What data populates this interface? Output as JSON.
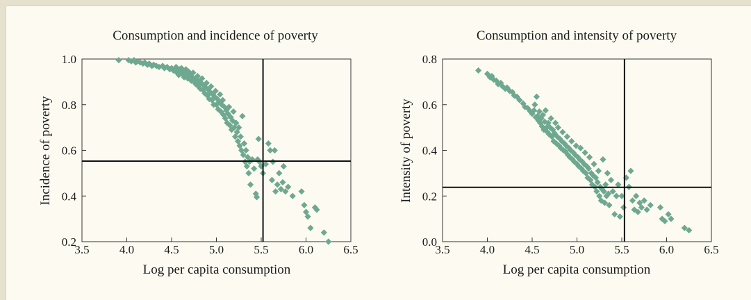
{
  "colors": {
    "marker": "#6fa890",
    "background": "#fdfbf1",
    "border": "#e6e0ce"
  },
  "chart_data": [
    {
      "type": "scatter",
      "title": "Consumption and incidence of poverty",
      "xlabel": "Log per capita consumption",
      "ylabel": "Incidence of poverty",
      "xlim": [
        3.5,
        6.5
      ],
      "ylim": [
        0.2,
        1.0
      ],
      "xticks": [
        3.5,
        4.0,
        4.5,
        5.0,
        5.5,
        6.0,
        6.5
      ],
      "xtick_labels": [
        "3.5",
        "4.0",
        "4.5",
        "5.0",
        "5.5",
        "6.0",
        "6.5"
      ],
      "yticks": [
        0.2,
        0.4,
        0.6,
        0.8,
        1.0
      ],
      "ytick_labels": [
        "0.2",
        "0.4",
        "0.6",
        "0.8",
        "1.0"
      ],
      "vline": 5.52,
      "hline": 0.553,
      "grid": false,
      "points": [
        [
          3.91,
          0.995
        ],
        [
          4.02,
          0.995
        ],
        [
          4.05,
          0.99
        ],
        [
          4.08,
          0.995
        ],
        [
          4.1,
          0.985
        ],
        [
          4.12,
          0.99
        ],
        [
          4.15,
          0.985
        ],
        [
          4.18,
          0.98
        ],
        [
          4.2,
          0.985
        ],
        [
          4.23,
          0.975
        ],
        [
          4.25,
          0.98
        ],
        [
          4.28,
          0.97
        ],
        [
          4.3,
          0.975
        ],
        [
          4.33,
          0.97
        ],
        [
          4.36,
          0.965
        ],
        [
          4.4,
          0.97
        ],
        [
          4.42,
          0.96
        ],
        [
          4.45,
          0.965
        ],
        [
          4.48,
          0.955
        ],
        [
          4.5,
          0.96
        ],
        [
          4.52,
          0.95
        ],
        [
          4.54,
          0.955
        ],
        [
          4.55,
          0.965
        ],
        [
          4.56,
          0.94
        ],
        [
          4.57,
          0.95
        ],
        [
          4.58,
          0.93
        ],
        [
          4.59,
          0.955
        ],
        [
          4.6,
          0.945
        ],
        [
          4.61,
          0.96
        ],
        [
          4.62,
          0.935
        ],
        [
          4.63,
          0.95
        ],
        [
          4.64,
          0.92
        ],
        [
          4.65,
          0.94
        ],
        [
          4.66,
          0.955
        ],
        [
          4.67,
          0.93
        ],
        [
          4.68,
          0.915
        ],
        [
          4.69,
          0.945
        ],
        [
          4.7,
          0.925
        ],
        [
          4.71,
          0.935
        ],
        [
          4.72,
          0.905
        ],
        [
          4.73,
          0.92
        ],
        [
          4.74,
          0.94
        ],
        [
          4.75,
          0.9
        ],
        [
          4.76,
          0.915
        ],
        [
          4.77,
          0.89
        ],
        [
          4.78,
          0.91
        ],
        [
          4.79,
          0.925
        ],
        [
          4.8,
          0.88
        ],
        [
          4.81,
          0.9
        ],
        [
          4.82,
          0.87
        ],
        [
          4.83,
          0.895
        ],
        [
          4.84,
          0.915
        ],
        [
          4.85,
          0.865
        ],
        [
          4.86,
          0.885
        ],
        [
          4.87,
          0.85
        ],
        [
          4.88,
          0.875
        ],
        [
          4.89,
          0.895
        ],
        [
          4.9,
          0.84
        ],
        [
          4.91,
          0.865
        ],
        [
          4.92,
          0.825
        ],
        [
          4.93,
          0.855
        ],
        [
          4.94,
          0.88
        ],
        [
          4.95,
          0.82
        ],
        [
          4.96,
          0.845
        ],
        [
          4.97,
          0.8
        ],
        [
          4.98,
          0.835
        ],
        [
          4.99,
          0.86
        ],
        [
          5.0,
          0.8
        ],
        [
          5.01,
          0.825
        ],
        [
          5.02,
          0.78
        ],
        [
          5.03,
          0.81
        ],
        [
          5.04,
          0.845
        ],
        [
          5.05,
          0.77
        ],
        [
          5.06,
          0.8
        ],
        [
          5.07,
          0.82
        ],
        [
          5.08,
          0.755
        ],
        [
          5.09,
          0.79
        ],
        [
          5.1,
          0.74
        ],
        [
          5.11,
          0.775
        ],
        [
          5.12,
          0.72
        ],
        [
          5.13,
          0.76
        ],
        [
          5.14,
          0.79
        ],
        [
          5.15,
          0.71
        ],
        [
          5.16,
          0.745
        ],
        [
          5.17,
          0.69
        ],
        [
          5.18,
          0.73
        ],
        [
          5.19,
          0.77
        ],
        [
          5.2,
          0.7
        ],
        [
          5.21,
          0.66
        ],
        [
          5.22,
          0.72
        ],
        [
          5.23,
          0.68
        ],
        [
          5.24,
          0.64
        ],
        [
          5.25,
          0.7
        ],
        [
          5.26,
          0.62
        ],
        [
          5.27,
          0.66
        ],
        [
          5.28,
          0.6
        ],
        [
          5.29,
          0.75
        ],
        [
          5.3,
          0.58
        ],
        [
          5.31,
          0.63
        ],
        [
          5.32,
          0.55
        ],
        [
          5.33,
          0.6
        ],
        [
          5.34,
          0.53
        ],
        [
          5.35,
          0.57
        ],
        [
          5.36,
          0.5
        ],
        [
          5.37,
          0.55
        ],
        [
          5.38,
          0.45
        ],
        [
          5.4,
          0.56
        ],
        [
          5.42,
          0.52
        ],
        [
          5.44,
          0.41
        ],
        [
          5.45,
          0.395
        ],
        [
          5.46,
          0.56
        ],
        [
          5.47,
          0.65
        ],
        [
          5.48,
          0.55
        ],
        [
          5.5,
          0.53
        ],
        [
          5.52,
          0.5
        ],
        [
          5.55,
          0.54
        ],
        [
          5.58,
          0.63
        ],
        [
          5.6,
          0.6
        ],
        [
          5.62,
          0.47
        ],
        [
          5.63,
          0.55
        ],
        [
          5.65,
          0.6
        ],
        [
          5.66,
          0.42
        ],
        [
          5.68,
          0.45
        ],
        [
          5.7,
          0.5
        ],
        [
          5.72,
          0.43
        ],
        [
          5.74,
          0.46
        ],
        [
          5.75,
          0.53
        ],
        [
          5.77,
          0.42
        ],
        [
          5.8,
          0.44
        ],
        [
          5.85,
          0.4
        ],
        [
          5.95,
          0.42
        ],
        [
          5.98,
          0.36
        ],
        [
          6.0,
          0.33
        ],
        [
          6.02,
          0.31
        ],
        [
          6.05,
          0.26
        ],
        [
          6.1,
          0.35
        ],
        [
          6.12,
          0.34
        ],
        [
          6.2,
          0.24
        ],
        [
          6.25,
          0.2
        ]
      ]
    },
    {
      "type": "scatter",
      "title": "Consumption and intensity of poverty",
      "xlabel": "Log per capita consumption",
      "ylabel": "Intensity of poverty",
      "xlim": [
        3.5,
        6.5
      ],
      "ylim": [
        0.0,
        0.8
      ],
      "xticks": [
        3.5,
        4.0,
        4.5,
        5.0,
        5.5,
        6.0,
        6.5
      ],
      "xtick_labels": [
        "3.5",
        "4.0",
        "4.5",
        "5.0",
        "5.5",
        "6.0",
        "6.5"
      ],
      "yticks": [
        0.0,
        0.2,
        0.4,
        0.6,
        0.8
      ],
      "ytick_labels": [
        "0.0",
        "0.2",
        "0.4",
        "0.6",
        "0.8"
      ],
      "vline": 5.53,
      "hline": 0.238,
      "grid": false,
      "points": [
        [
          3.9,
          0.75
        ],
        [
          4.0,
          0.735
        ],
        [
          4.03,
          0.72
        ],
        [
          4.05,
          0.725
        ],
        [
          4.07,
          0.71
        ],
        [
          4.1,
          0.705
        ],
        [
          4.12,
          0.69
        ],
        [
          4.15,
          0.695
        ],
        [
          4.17,
          0.68
        ],
        [
          4.2,
          0.67
        ],
        [
          4.22,
          0.675
        ],
        [
          4.25,
          0.66
        ],
        [
          4.28,
          0.655
        ],
        [
          4.3,
          0.64
        ],
        [
          4.33,
          0.635
        ],
        [
          4.36,
          0.62
        ],
        [
          4.4,
          0.605
        ],
        [
          4.42,
          0.59
        ],
        [
          4.45,
          0.585
        ],
        [
          4.48,
          0.57
        ],
        [
          4.5,
          0.56
        ],
        [
          4.52,
          0.575
        ],
        [
          4.53,
          0.6
        ],
        [
          4.54,
          0.545
        ],
        [
          4.55,
          0.635
        ],
        [
          4.56,
          0.55
        ],
        [
          4.57,
          0.53
        ],
        [
          4.58,
          0.57
        ],
        [
          4.59,
          0.52
        ],
        [
          4.6,
          0.54
        ],
        [
          4.61,
          0.505
        ],
        [
          4.62,
          0.555
        ],
        [
          4.63,
          0.49
        ],
        [
          4.64,
          0.525
        ],
        [
          4.65,
          0.575
        ],
        [
          4.66,
          0.5
        ],
        [
          4.67,
          0.48
        ],
        [
          4.68,
          0.52
        ],
        [
          4.69,
          0.47
        ],
        [
          4.7,
          0.5
        ],
        [
          4.71,
          0.54
        ],
        [
          4.72,
          0.46
        ],
        [
          4.73,
          0.49
        ],
        [
          4.74,
          0.44
        ],
        [
          4.75,
          0.475
        ],
        [
          4.76,
          0.52
        ],
        [
          4.77,
          0.43
        ],
        [
          4.78,
          0.46
        ],
        [
          4.79,
          0.5
        ],
        [
          4.8,
          0.42
        ],
        [
          4.81,
          0.45
        ],
        [
          4.82,
          0.41
        ],
        [
          4.83,
          0.44
        ],
        [
          4.84,
          0.48
        ],
        [
          4.85,
          0.4
        ],
        [
          4.86,
          0.43
        ],
        [
          4.87,
          0.395
        ],
        [
          4.88,
          0.42
        ],
        [
          4.89,
          0.46
        ],
        [
          4.9,
          0.38
        ],
        [
          4.91,
          0.41
        ],
        [
          4.92,
          0.37
        ],
        [
          4.93,
          0.4
        ],
        [
          4.94,
          0.44
        ],
        [
          4.95,
          0.36
        ],
        [
          4.96,
          0.39
        ],
        [
          4.97,
          0.35
        ],
        [
          4.98,
          0.38
        ],
        [
          4.99,
          0.42
        ],
        [
          5.0,
          0.34
        ],
        [
          5.01,
          0.37
        ],
        [
          5.02,
          0.33
        ],
        [
          5.03,
          0.36
        ],
        [
          5.04,
          0.41
        ],
        [
          5.05,
          0.32
        ],
        [
          5.06,
          0.35
        ],
        [
          5.07,
          0.31
        ],
        [
          5.08,
          0.34
        ],
        [
          5.09,
          0.39
        ],
        [
          5.1,
          0.3
        ],
        [
          5.11,
          0.33
        ],
        [
          5.12,
          0.28
        ],
        [
          5.13,
          0.32
        ],
        [
          5.14,
          0.37
        ],
        [
          5.15,
          0.27
        ],
        [
          5.16,
          0.3
        ],
        [
          5.17,
          0.25
        ],
        [
          5.18,
          0.29
        ],
        [
          5.19,
          0.34
        ],
        [
          5.2,
          0.24
        ],
        [
          5.21,
          0.28
        ],
        [
          5.22,
          0.22
        ],
        [
          5.23,
          0.26
        ],
        [
          5.24,
          0.31
        ],
        [
          5.25,
          0.2
        ],
        [
          5.26,
          0.24
        ],
        [
          5.27,
          0.18
        ],
        [
          5.28,
          0.23
        ],
        [
          5.29,
          0.36
        ],
        [
          5.3,
          0.22
        ],
        [
          5.31,
          0.17
        ],
        [
          5.32,
          0.25
        ],
        [
          5.33,
          0.2
        ],
        [
          5.34,
          0.3
        ],
        [
          5.35,
          0.21
        ],
        [
          5.36,
          0.16
        ],
        [
          5.38,
          0.27
        ],
        [
          5.4,
          0.22
        ],
        [
          5.42,
          0.12
        ],
        [
          5.44,
          0.2
        ],
        [
          5.46,
          0.25
        ],
        [
          5.48,
          0.11
        ],
        [
          5.5,
          0.2
        ],
        [
          5.52,
          0.15
        ],
        [
          5.55,
          0.28
        ],
        [
          5.58,
          0.24
        ],
        [
          5.6,
          0.31
        ],
        [
          5.62,
          0.18
        ],
        [
          5.64,
          0.14
        ],
        [
          5.66,
          0.2
        ],
        [
          5.68,
          0.13
        ],
        [
          5.7,
          0.17
        ],
        [
          5.72,
          0.15
        ],
        [
          5.75,
          0.18
        ],
        [
          5.78,
          0.14
        ],
        [
          5.82,
          0.16
        ],
        [
          5.93,
          0.15
        ],
        [
          5.95,
          0.1
        ],
        [
          5.98,
          0.09
        ],
        [
          6.02,
          0.12
        ],
        [
          6.05,
          0.1
        ],
        [
          6.2,
          0.06
        ],
        [
          6.25,
          0.05
        ]
      ]
    }
  ]
}
